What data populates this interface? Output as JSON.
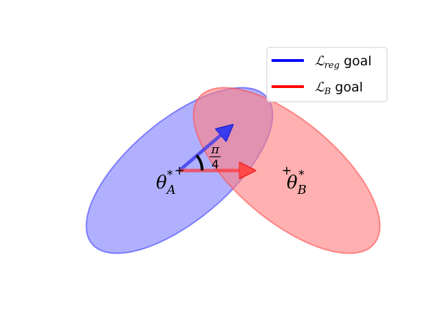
{
  "legend": {
    "items": [
      {
        "symbol": "ℒ",
        "subscript": "reg",
        "suffix": " goal",
        "color": "#0000ff"
      },
      {
        "symbol": "ℒ",
        "subscript": "B",
        "suffix": " goal",
        "color": "#ff0000"
      }
    ]
  },
  "optima": {
    "a": {
      "symbol": "θ",
      "subscript": "A",
      "superscript": "*"
    },
    "b": {
      "symbol": "θ",
      "subscript": "B",
      "superscript": "*"
    }
  },
  "angle": {
    "numerator": "π",
    "denominator": "4"
  },
  "marker_glyph": "+",
  "colors": {
    "region_a_fill": "#8080ff",
    "region_a_edge": "#3333ff",
    "region_b_fill": "#ff8080",
    "region_b_edge": "#ff4d4d",
    "arrow_a": "#3333ee",
    "arrow_b": "#ff3333"
  }
}
